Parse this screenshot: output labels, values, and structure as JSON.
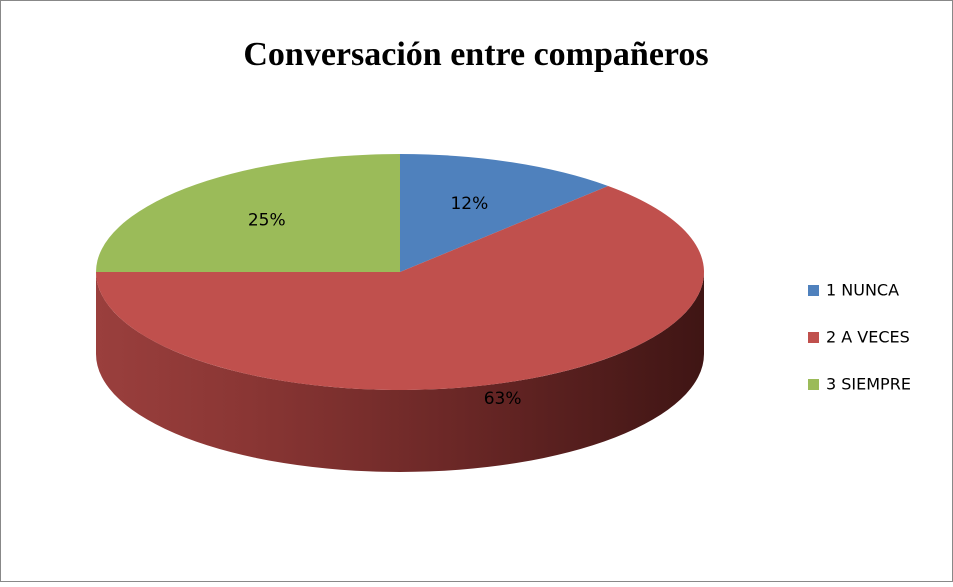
{
  "chart_data": {
    "type": "pie",
    "title": "Conversación entre compañeros",
    "categories": [
      "1 NUNCA",
      "2 A VECES",
      "3 SIEMPRE"
    ],
    "values": [
      12,
      63,
      25
    ],
    "value_labels": [
      "12%",
      "63%",
      "25%"
    ],
    "colors": [
      "#4f81bd",
      "#c0504d",
      "#9bbb59"
    ],
    "legend": "right"
  }
}
